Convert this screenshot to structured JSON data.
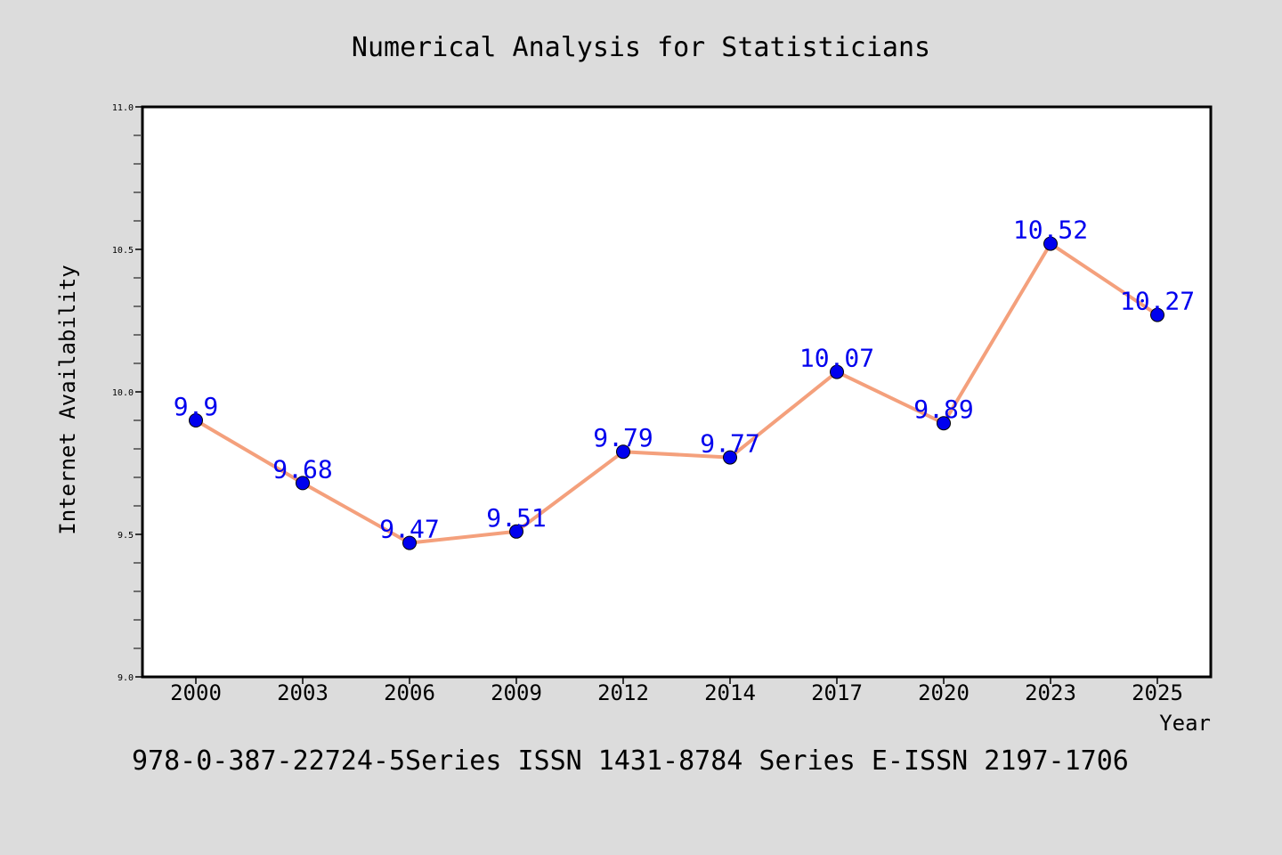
{
  "chart_data": {
    "type": "line",
    "title": "Numerical Analysis for Statisticians",
    "xlabel": "Year",
    "ylabel": "Internet Availability",
    "categories": [
      "2000",
      "2003",
      "2006",
      "2009",
      "2012",
      "2014",
      "2017",
      "2020",
      "2023",
      "2025"
    ],
    "series": [
      {
        "values": [
          9.9,
          9.68,
          9.47,
          9.51,
          9.79,
          9.77,
          10.07,
          9.89,
          10.52,
          10.27
        ],
        "data_labels": [
          "9.9",
          "9.68",
          "9.47",
          "9.51",
          "9.79",
          "9.77",
          "10.07",
          "9.89",
          "10.52",
          "10.27"
        ],
        "line_color": "#f4a07c",
        "marker_color": "#0000ee",
        "label_color": "#0000ee"
      }
    ],
    "ylim": [
      9.0,
      11.0
    ],
    "yticks": [
      "9.0",
      "9.5",
      "10.0",
      "10.5",
      "11.0"
    ],
    "grid": false,
    "legend": "none"
  },
  "footer_text": "978-0-387-22724-5Series ISSN 1431-8784 Series E-ISSN 2197-1706",
  "colors": {
    "background": "#dcdcdc",
    "plot_background": "#ffffff",
    "axis": "#000000"
  }
}
